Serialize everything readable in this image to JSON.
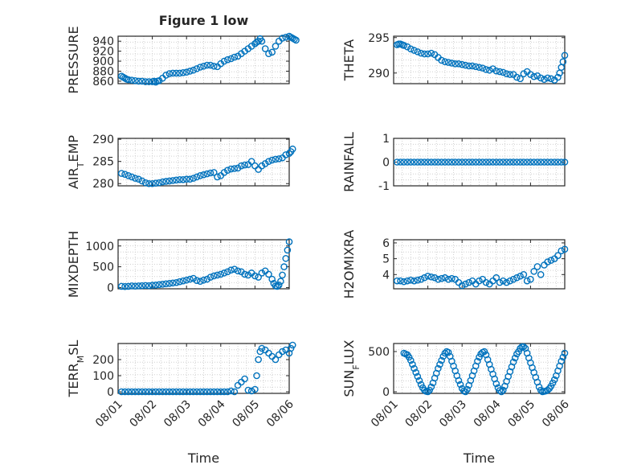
{
  "figure": {
    "title": "Figure 1 low"
  },
  "chart_data": [
    {
      "id": "pressure",
      "type": "scatter",
      "title": "Figure 1 low",
      "ylabel": "PRESSURE",
      "ylim": [
        855,
        950
      ],
      "yticks": [
        860,
        880,
        900,
        920,
        940
      ],
      "xlim": [
        0,
        5
      ],
      "xtick_labels": [],
      "xlabel": "",
      "x": [
        0.1,
        0.15,
        0.2,
        0.25,
        0.3,
        0.4,
        0.5,
        0.6,
        0.7,
        0.8,
        0.9,
        1.0,
        1.05,
        1.1,
        1.15,
        1.2,
        1.3,
        1.4,
        1.5,
        1.6,
        1.7,
        1.8,
        1.9,
        2.0,
        2.1,
        2.2,
        2.3,
        2.4,
        2.5,
        2.6,
        2.7,
        2.8,
        2.9,
        3.0,
        3.1,
        3.2,
        3.3,
        3.4,
        3.5,
        3.6,
        3.7,
        3.8,
        3.9,
        4.0,
        4.05,
        4.1,
        4.15,
        4.2,
        4.3,
        4.4,
        4.5,
        4.6,
        4.7,
        4.8,
        4.9,
        5.0,
        5.05,
        5.1,
        5.15,
        5.2
      ],
      "y": [
        870,
        868,
        866,
        864,
        863,
        862,
        861,
        860,
        860,
        859,
        859,
        859,
        860,
        858,
        860,
        861,
        866,
        872,
        875,
        876,
        876,
        876,
        877,
        878,
        880,
        882,
        885,
        888,
        890,
        892,
        892,
        890,
        889,
        895,
        900,
        903,
        905,
        908,
        910,
        915,
        920,
        925,
        930,
        935,
        938,
        940,
        945,
        940,
        925,
        915,
        918,
        930,
        940,
        946,
        948,
        950,
        948,
        946,
        944,
        942
      ]
    },
    {
      "id": "theta",
      "type": "scatter",
      "ylabel": "THETA",
      "ylim": [
        288.5,
        295.2
      ],
      "yticks": [
        290,
        295
      ],
      "xlim": [
        0,
        5
      ],
      "xtick_labels": [],
      "xlabel": "",
      "x": [
        0.1,
        0.15,
        0.2,
        0.25,
        0.3,
        0.4,
        0.5,
        0.6,
        0.7,
        0.8,
        0.9,
        1.0,
        1.1,
        1.2,
        1.3,
        1.4,
        1.5,
        1.6,
        1.7,
        1.8,
        1.9,
        2.0,
        2.1,
        2.2,
        2.3,
        2.4,
        2.5,
        2.6,
        2.7,
        2.8,
        2.9,
        3.0,
        3.1,
        3.2,
        3.3,
        3.4,
        3.5,
        3.6,
        3.7,
        3.8,
        3.9,
        4.0,
        4.1,
        4.2,
        4.3,
        4.4,
        4.5,
        4.6,
        4.7,
        4.8,
        4.85,
        4.9,
        4.95,
        5.0
      ],
      "y": [
        294.0,
        294.1,
        294.1,
        294.0,
        293.9,
        293.7,
        293.4,
        293.2,
        293.0,
        292.8,
        292.7,
        292.7,
        292.8,
        292.6,
        292.2,
        291.8,
        291.6,
        291.5,
        291.4,
        291.3,
        291.3,
        291.2,
        291.1,
        291.0,
        291.0,
        290.9,
        290.8,
        290.7,
        290.5,
        290.4,
        290.6,
        290.3,
        290.2,
        290.1,
        289.9,
        289.8,
        289.8,
        289.4,
        289.2,
        289.9,
        290.2,
        289.8,
        289.5,
        289.6,
        289.3,
        289.1,
        289.3,
        289.2,
        289.0,
        289.4,
        290.0,
        290.8,
        291.6,
        292.5
      ]
    },
    {
      "id": "air_temp",
      "type": "scatter",
      "ylabel": "AIR_TEMP",
      "ylim": [
        279.5,
        290.2
      ],
      "yticks": [
        280,
        285,
        290
      ],
      "xlim": [
        0,
        5
      ],
      "xtick_labels": [],
      "xlabel": "",
      "x": [
        0.1,
        0.2,
        0.3,
        0.4,
        0.5,
        0.6,
        0.7,
        0.8,
        0.9,
        1.0,
        1.1,
        1.2,
        1.3,
        1.4,
        1.5,
        1.6,
        1.7,
        1.8,
        1.9,
        2.0,
        2.1,
        2.2,
        2.3,
        2.4,
        2.5,
        2.6,
        2.7,
        2.8,
        2.9,
        3.0,
        3.1,
        3.2,
        3.3,
        3.4,
        3.5,
        3.6,
        3.7,
        3.8,
        3.9,
        4.0,
        4.1,
        4.2,
        4.3,
        4.4,
        4.5,
        4.6,
        4.7,
        4.8,
        4.9,
        5.0,
        5.05,
        5.1
      ],
      "y": [
        282.3,
        282.1,
        281.8,
        281.5,
        281.2,
        281.0,
        280.6,
        280.2,
        280.0,
        280.0,
        280.1,
        280.2,
        280.4,
        280.5,
        280.6,
        280.7,
        280.8,
        280.9,
        280.9,
        281.0,
        281.0,
        281.2,
        281.5,
        281.8,
        282.0,
        282.2,
        282.4,
        282.5,
        281.5,
        281.8,
        282.5,
        283.0,
        283.3,
        283.4,
        283.5,
        284.0,
        284.2,
        284.3,
        285.0,
        284.0,
        283.2,
        284.0,
        284.5,
        285.0,
        285.3,
        285.5,
        285.6,
        285.8,
        286.5,
        286.8,
        287.2,
        287.8
      ]
    },
    {
      "id": "rainfall",
      "type": "scatter",
      "ylabel": "RAINFALL",
      "ylim": [
        -1,
        1
      ],
      "yticks": [
        -1,
        0,
        1
      ],
      "xlim": [
        0,
        5
      ],
      "xtick_labels": [],
      "xlabel": "",
      "x": [
        0.1,
        0.2,
        0.3,
        0.4,
        0.5,
        0.6,
        0.7,
        0.8,
        0.9,
        1.0,
        1.1,
        1.2,
        1.3,
        1.4,
        1.5,
        1.6,
        1.7,
        1.8,
        1.9,
        2.0,
        2.1,
        2.2,
        2.3,
        2.4,
        2.5,
        2.6,
        2.7,
        2.8,
        2.9,
        3.0,
        3.1,
        3.2,
        3.3,
        3.4,
        3.5,
        3.6,
        3.7,
        3.8,
        3.9,
        4.0,
        4.1,
        4.2,
        4.3,
        4.4,
        4.5,
        4.6,
        4.7,
        4.8,
        4.9,
        5.0
      ],
      "y": [
        0,
        0,
        0,
        0,
        0,
        0,
        0,
        0,
        0,
        0,
        0,
        0,
        0,
        0,
        0,
        0,
        0,
        0,
        0,
        0,
        0,
        0,
        0,
        0,
        0,
        0,
        0,
        0,
        0,
        0,
        0,
        0,
        0,
        0,
        0,
        0,
        0,
        0,
        0,
        0,
        0,
        0,
        0,
        0,
        0,
        0,
        0,
        0,
        0,
        0
      ]
    },
    {
      "id": "mixdepth",
      "type": "scatter",
      "ylabel": "MIXDEPTH",
      "ylim": [
        -30,
        1150
      ],
      "yticks": [
        0,
        500,
        1000
      ],
      "xlim": [
        0,
        5
      ],
      "xtick_labels": [],
      "xlabel": "",
      "x": [
        0.1,
        0.2,
        0.3,
        0.4,
        0.5,
        0.6,
        0.7,
        0.8,
        0.9,
        1.0,
        1.1,
        1.2,
        1.3,
        1.4,
        1.5,
        1.6,
        1.7,
        1.8,
        1.9,
        2.0,
        2.1,
        2.2,
        2.3,
        2.4,
        2.5,
        2.6,
        2.7,
        2.8,
        2.9,
        3.0,
        3.1,
        3.2,
        3.3,
        3.4,
        3.5,
        3.6,
        3.7,
        3.8,
        3.9,
        4.0,
        4.1,
        4.2,
        4.3,
        4.4,
        4.5,
        4.55,
        4.6,
        4.65,
        4.7,
        4.75,
        4.8,
        4.85,
        4.9,
        4.95,
        5.0
      ],
      "y": [
        30,
        25,
        30,
        40,
        35,
        40,
        45,
        50,
        45,
        55,
        60,
        70,
        80,
        90,
        100,
        110,
        120,
        140,
        160,
        180,
        200,
        220,
        170,
        150,
        180,
        200,
        250,
        280,
        300,
        320,
        350,
        380,
        420,
        440,
        400,
        380,
        320,
        300,
        350,
        280,
        250,
        350,
        400,
        320,
        200,
        100,
        40,
        30,
        60,
        150,
        300,
        500,
        700,
        900,
        1100
      ]
    },
    {
      "id": "h2omixra",
      "type": "scatter",
      "ylabel": "H2OMIXRA",
      "ylim": [
        3.1,
        6.2
      ],
      "yticks": [
        4,
        5,
        6
      ],
      "xlim": [
        0,
        5
      ],
      "xtick_labels": [],
      "xlabel": "",
      "x": [
        0.1,
        0.2,
        0.3,
        0.4,
        0.5,
        0.6,
        0.7,
        0.8,
        0.9,
        1.0,
        1.1,
        1.2,
        1.3,
        1.4,
        1.5,
        1.6,
        1.7,
        1.8,
        1.9,
        2.0,
        2.1,
        2.2,
        2.3,
        2.4,
        2.5,
        2.6,
        2.7,
        2.8,
        2.9,
        3.0,
        3.1,
        3.2,
        3.3,
        3.4,
        3.5,
        3.6,
        3.7,
        3.8,
        3.9,
        4.0,
        4.1,
        4.2,
        4.3,
        4.4,
        4.5,
        4.6,
        4.7,
        4.8,
        4.9,
        5.0
      ],
      "y": [
        3.6,
        3.6,
        3.55,
        3.6,
        3.65,
        3.6,
        3.65,
        3.7,
        3.8,
        3.9,
        3.85,
        3.8,
        3.7,
        3.75,
        3.8,
        3.7,
        3.75,
        3.7,
        3.5,
        3.3,
        3.4,
        3.5,
        3.6,
        3.4,
        3.6,
        3.7,
        3.5,
        3.4,
        3.6,
        3.8,
        3.5,
        3.6,
        3.5,
        3.6,
        3.7,
        3.8,
        3.9,
        4.0,
        3.6,
        3.7,
        4.2,
        4.5,
        4.0,
        4.6,
        4.8,
        4.9,
        5.0,
        5.2,
        5.5,
        5.6
      ]
    },
    {
      "id": "terr_msl",
      "type": "scatter",
      "ylabel": "TERR_MSL",
      "ylim": [
        -10,
        300
      ],
      "yticks": [
        0,
        100,
        200
      ],
      "xlim": [
        0,
        5
      ],
      "xtick_labels": [
        "08/01",
        "08/02",
        "08/03",
        "08/04",
        "08/05",
        "08/06"
      ],
      "xlabel": "Time",
      "x": [
        0.1,
        0.2,
        0.3,
        0.4,
        0.5,
        0.6,
        0.7,
        0.8,
        0.9,
        1.0,
        1.1,
        1.2,
        1.3,
        1.4,
        1.5,
        1.6,
        1.7,
        1.8,
        1.9,
        2.0,
        2.1,
        2.2,
        2.3,
        2.4,
        2.5,
        2.6,
        2.7,
        2.8,
        2.9,
        3.0,
        3.1,
        3.2,
        3.3,
        3.4,
        3.5,
        3.6,
        3.7,
        3.8,
        3.9,
        4.0,
        4.05,
        4.1,
        4.15,
        4.2,
        4.3,
        4.4,
        4.5,
        4.6,
        4.7,
        4.8,
        4.9,
        5.0,
        5.05,
        5.1
      ],
      "y": [
        0,
        0,
        0,
        0,
        0,
        0,
        0,
        0,
        0,
        0,
        0,
        0,
        0,
        0,
        0,
        0,
        0,
        0,
        0,
        0,
        0,
        0,
        0,
        0,
        0,
        0,
        0,
        0,
        0,
        0,
        0,
        0,
        5,
        0,
        40,
        60,
        80,
        10,
        5,
        15,
        100,
        200,
        250,
        270,
        260,
        240,
        220,
        200,
        230,
        250,
        260,
        240,
        270,
        290
      ]
    },
    {
      "id": "sun_flux",
      "type": "scatter",
      "ylabel": "SUN_FLUX",
      "ylim": [
        -20,
        600
      ],
      "yticks": [
        0,
        500
      ],
      "xlim": [
        0,
        5
      ],
      "xtick_labels": [
        "08/01",
        "08/02",
        "08/03",
        "08/04",
        "08/05",
        "08/06"
      ],
      "xlabel": "Time",
      "x": [
        0.3,
        0.35,
        0.4,
        0.45,
        0.5,
        0.55,
        0.6,
        0.65,
        0.7,
        0.75,
        0.8,
        0.85,
        0.9,
        0.95,
        1.0,
        1.05,
        1.1,
        1.15,
        1.2,
        1.25,
        1.3,
        1.35,
        1.4,
        1.45,
        1.5,
        1.55,
        1.6,
        1.65,
        1.7,
        1.75,
        1.8,
        1.85,
        1.9,
        1.95,
        2.0,
        2.05,
        2.1,
        2.15,
        2.2,
        2.25,
        2.3,
        2.35,
        2.4,
        2.45,
        2.5,
        2.55,
        2.6,
        2.65,
        2.7,
        2.75,
        2.8,
        2.85,
        2.9,
        2.95,
        3.0,
        3.05,
        3.1,
        3.15,
        3.2,
        3.25,
        3.3,
        3.35,
        3.4,
        3.45,
        3.5,
        3.55,
        3.6,
        3.65,
        3.7,
        3.75,
        3.8,
        3.85,
        3.9,
        3.95,
        4.0,
        4.05,
        4.1,
        4.15,
        4.2,
        4.25,
        4.3,
        4.35,
        4.4,
        4.45,
        4.5,
        4.55,
        4.6,
        4.65,
        4.7,
        4.75,
        4.8,
        4.85,
        4.9,
        4.95,
        5.0
      ],
      "y": [
        480,
        470,
        460,
        430,
        390,
        340,
        290,
        240,
        190,
        140,
        90,
        50,
        20,
        5,
        0,
        20,
        60,
        110,
        170,
        230,
        290,
        340,
        390,
        440,
        480,
        500,
        490,
        440,
        380,
        320,
        260,
        200,
        140,
        90,
        40,
        10,
        0,
        30,
        80,
        140,
        200,
        260,
        320,
        380,
        430,
        470,
        490,
        500,
        460,
        400,
        340,
        280,
        220,
        160,
        100,
        50,
        15,
        0,
        20,
        70,
        130,
        190,
        250,
        310,
        370,
        420,
        470,
        500,
        540,
        560,
        560,
        540,
        480,
        420,
        360,
        300,
        240,
        180,
        120,
        60,
        20,
        0,
        5,
        10,
        20,
        40,
        70,
        110,
        150,
        200,
        260,
        320,
        380,
        430,
        480
      ]
    }
  ]
}
